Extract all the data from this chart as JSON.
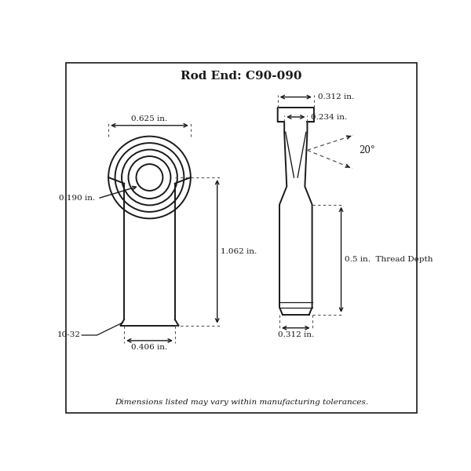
{
  "title": "Rod End: C90-090",
  "background_color": "#ffffff",
  "line_color": "#1a1a1a",
  "dot_line_color": "#555555",
  "footer_text": "Dimensions listed may vary within manufacturing tolerances.",
  "labels": {
    "width_625": "0.625 in.",
    "hole_190": "0.190 in.",
    "height_1062": "1.062 in.",
    "width_406": "0.406 in.",
    "thread_label": "10-32",
    "top_312": "0.312 in.",
    "inner_234": "0.234 in.",
    "angle_20": "20°",
    "thread_depth": "0.5 in.  Thread Depth",
    "bottom_312": "0.312 in."
  }
}
